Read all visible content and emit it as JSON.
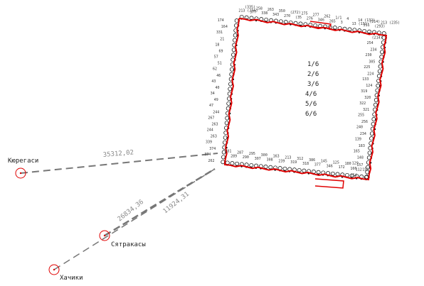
{
  "colors": {
    "boundary": "#e00000",
    "points": "#000000",
    "tie_lines": "#777777",
    "landmark_circle": "#e00000",
    "labels": "#333333"
  },
  "sheets": [
    "1/6",
    "2/6",
    "3/6",
    "4/6",
    "5/6",
    "6/6"
  ],
  "landmarks": [
    {
      "name": "Кюрегаси"
    },
    {
      "name": "Сятракасы"
    },
    {
      "name": "Хачики"
    }
  ],
  "distances": [
    "35312,02",
    "26834,36",
    "11924,31"
  ],
  "point_labels": [
    "213 (256)",
    "(335)",
    "377",
    "258",
    "338",
    "263",
    "343",
    "350",
    "270",
    "(272)",
    "(35",
    "275",
    "276",
    "277",
    "346",
    "262",
    "265",
    "1/1",
    "3",
    "4",
    "13 (131)",
    "14 (132)",
    "311",
    "(214)",
    "(293)",
    "213 (235)",
    "(214)",
    "254",
    "234",
    "230",
    "305",
    "225",
    "224",
    "133",
    "124",
    "319",
    "320",
    "322",
    "321",
    "255",
    "256",
    "240",
    "234",
    "139",
    "183",
    "165",
    "148",
    "129",
    "112",
    "154",
    "156",
    "157",
    "166",
    "180",
    "172",
    "125",
    "346",
    "145",
    "377",
    "386",
    "318",
    "312",
    "319",
    "213",
    "239",
    "163",
    "308",
    "300",
    "307",
    "295",
    "290",
    "287",
    "289",
    "281",
    "262",
    "374",
    "374",
    "339",
    "263",
    "244",
    "263",
    "267",
    "244",
    "47",
    "49",
    "34",
    "40",
    "43",
    "46",
    "62",
    "51",
    "57",
    "69",
    "18",
    "21",
    "331",
    "164",
    "174"
  ]
}
